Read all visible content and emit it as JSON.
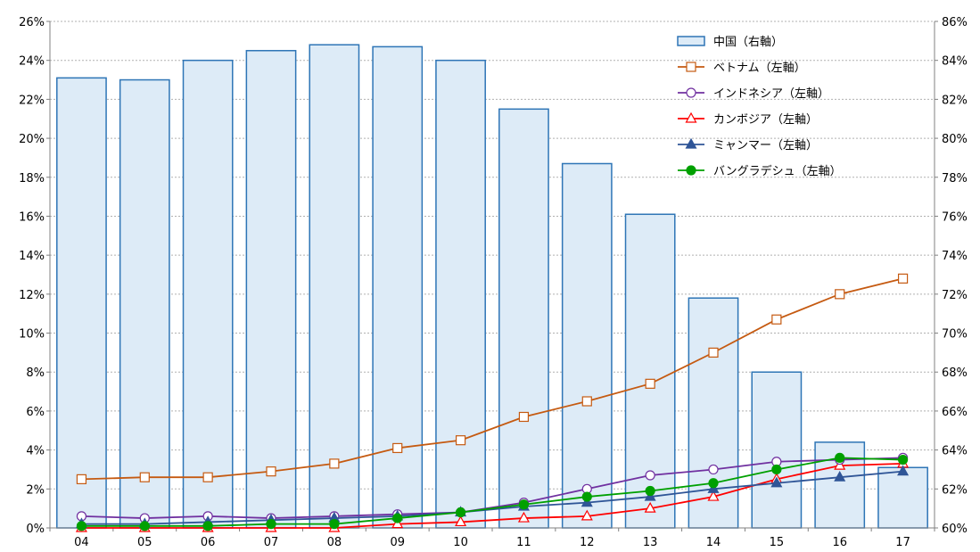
{
  "chart_data": {
    "type": "bar+line",
    "title": "",
    "categories": [
      "04",
      "05",
      "06",
      "07",
      "08",
      "09",
      "10",
      "11",
      "12",
      "13",
      "14",
      "15",
      "16",
      "17"
    ],
    "left_axis": {
      "ylim": [
        0,
        26
      ],
      "ticks": [
        "0%",
        "2%",
        "4%",
        "6%",
        "8%",
        "10%",
        "12%",
        "14%",
        "16%",
        "18%",
        "20%",
        "22%",
        "24%",
        "26%"
      ]
    },
    "right_axis": {
      "ylim": [
        60,
        86
      ],
      "ticks": [
        "60%",
        "62%",
        "64%",
        "66%",
        "68%",
        "70%",
        "72%",
        "74%",
        "76%",
        "78%",
        "80%",
        "82%",
        "84%",
        "86%"
      ]
    },
    "grid": true,
    "legend_position": "top-right",
    "bar_series": {
      "name": "中国（右軸）",
      "axis": "right",
      "color": "#2e75b6",
      "fill": "#ddebf7",
      "values": [
        83.1,
        83.0,
        84.0,
        84.5,
        84.8,
        84.7,
        84.0,
        81.5,
        78.7,
        76.1,
        71.8,
        68.0,
        64.4,
        63.1
      ]
    },
    "series": [
      {
        "name": "ベトナム（左軸）",
        "axis": "left",
        "marker": "square",
        "filled": false,
        "color": "#c55a11",
        "values": [
          2.5,
          2.6,
          2.6,
          2.9,
          3.3,
          4.1,
          4.5,
          5.7,
          6.5,
          7.4,
          9.0,
          10.7,
          12.0,
          12.8
        ]
      },
      {
        "name": "インドネシア（左軸）",
        "axis": "left",
        "marker": "circle",
        "filled": false,
        "color": "#7030a0",
        "values": [
          0.6,
          0.5,
          0.6,
          0.5,
          0.6,
          0.7,
          0.8,
          1.3,
          2.0,
          2.7,
          3.0,
          3.4,
          3.5,
          3.6
        ]
      },
      {
        "name": "カンボジア（左軸）",
        "axis": "left",
        "marker": "triangle",
        "filled": false,
        "color": "#ff0000",
        "values": [
          0.0,
          0.0,
          0.0,
          0.0,
          0.0,
          0.2,
          0.3,
          0.5,
          0.6,
          1.0,
          1.6,
          2.5,
          3.2,
          3.3
        ]
      },
      {
        "name": "ミャンマー（左軸）",
        "axis": "left",
        "marker": "triangle",
        "filled": true,
        "color": "#2f5597",
        "values": [
          0.2,
          0.2,
          0.3,
          0.4,
          0.5,
          0.6,
          0.8,
          1.1,
          1.3,
          1.6,
          2.0,
          2.3,
          2.6,
          2.9
        ]
      },
      {
        "name": "バングラデシュ（左軸）",
        "axis": "left",
        "marker": "circle",
        "filled": true,
        "color": "#00a000",
        "values": [
          0.1,
          0.1,
          0.1,
          0.2,
          0.2,
          0.5,
          0.8,
          1.2,
          1.6,
          1.9,
          2.3,
          3.0,
          3.6,
          3.5
        ]
      }
    ]
  }
}
